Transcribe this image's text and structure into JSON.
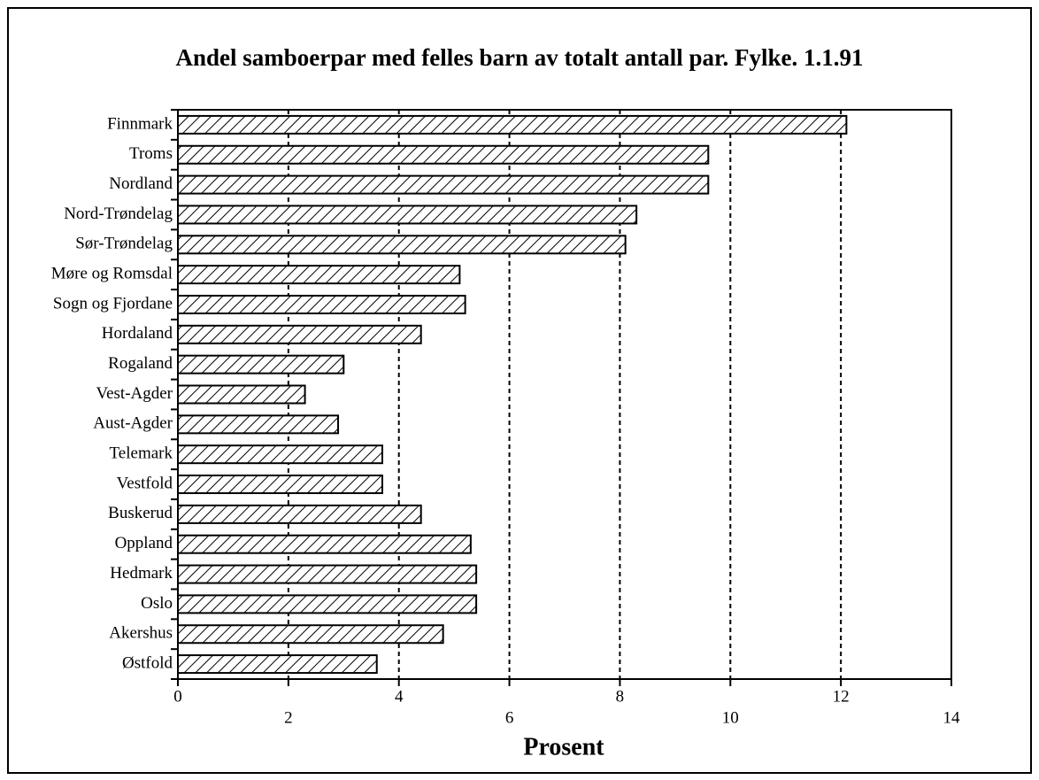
{
  "chart_data": {
    "type": "barh",
    "title": "Andel samboerpar med felles barn av totalt antall par. Fylke. 1.1.91",
    "xlabel": "Prosent",
    "categories": [
      "Finnmark",
      "Troms",
      "Nordland",
      "Nord-Trøndelag",
      "Sør-Trøndelag",
      "Møre og Romsdal",
      "Sogn og Fjordane",
      "Hordaland",
      "Rogaland",
      "Vest-Agder",
      "Aust-Agder",
      "Telemark",
      "Vestfold",
      "Buskerud",
      "Oppland",
      "Hedmark",
      "Oslo",
      "Akershus",
      "Østfold"
    ],
    "values": [
      12.1,
      9.6,
      9.6,
      8.3,
      8.1,
      5.1,
      5.2,
      4.4,
      3.0,
      2.3,
      2.9,
      3.7,
      3.7,
      4.4,
      5.3,
      5.4,
      5.4,
      4.8,
      3.6
    ],
    "color": "#000000",
    "xlim": [
      0,
      14
    ],
    "xticks": [
      0,
      2,
      4,
      6,
      8,
      10,
      12,
      14
    ],
    "grid": true
  }
}
